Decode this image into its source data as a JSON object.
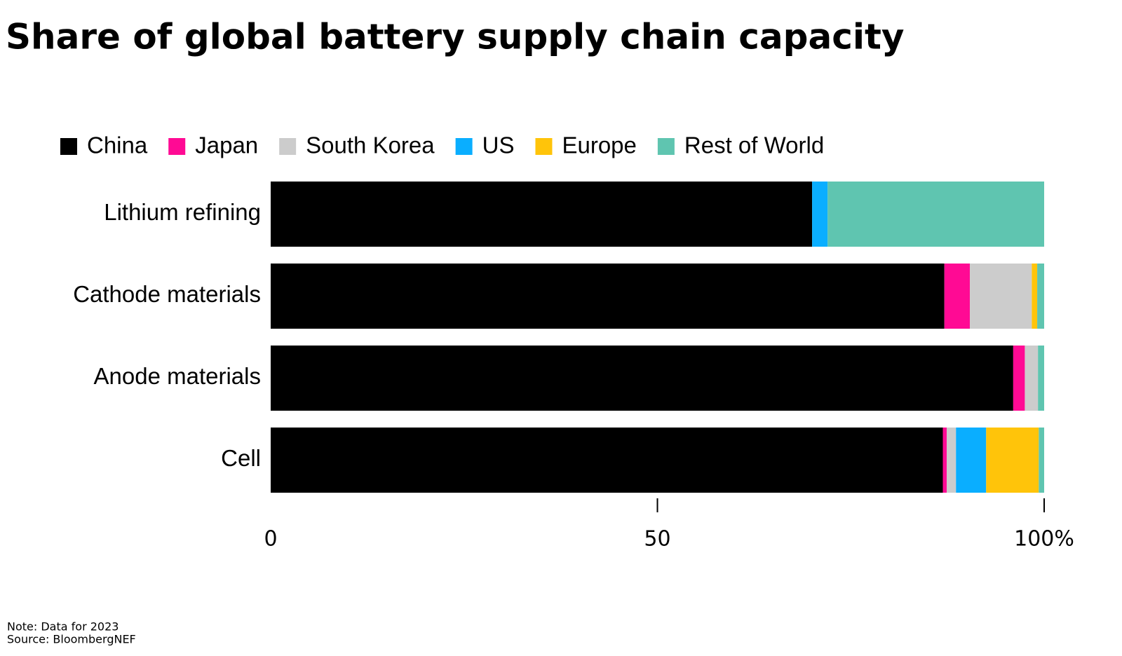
{
  "chart_data": {
    "type": "stacked-bar-horizontal",
    "title": "Share of global battery supply chain capacity",
    "categories": [
      "Lithium refining",
      "Cathode materials",
      "Anode materials",
      "Cell"
    ],
    "series": [
      {
        "name": "China",
        "color": "#000000",
        "values": [
          70.0,
          87.1,
          96.0,
          86.9
        ]
      },
      {
        "name": "Japan",
        "color": "#ff0a94",
        "values": [
          0,
          3.3,
          1.5,
          0.5
        ]
      },
      {
        "name": "South Korea",
        "color": "#cccccc",
        "values": [
          0,
          8.0,
          1.7,
          1.2
        ]
      },
      {
        "name": "US",
        "color": "#0aaeff",
        "values": [
          2.0,
          0,
          0,
          3.9
        ]
      },
      {
        "name": "Europe",
        "color": "#ffc40a",
        "values": [
          0,
          0.7,
          0,
          6.8
        ]
      },
      {
        "name": "Rest of World",
        "color": "#5fc5b0",
        "values": [
          28.0,
          0.9,
          0.8,
          0.7
        ]
      }
    ],
    "xlim": [
      0,
      100
    ],
    "xticks": [
      0,
      50,
      {
        "value": 100,
        "label": "100%"
      }
    ],
    "legend": "top",
    "note": "Note: Data for 2023",
    "source": "Source: BloombergNEF"
  }
}
